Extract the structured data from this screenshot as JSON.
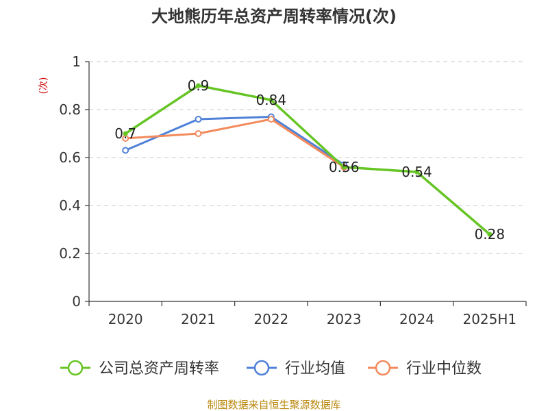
{
  "chart_data": {
    "type": "line",
    "title": "大地熊历年总资产周转率情况(次)",
    "ylabel": "(次)",
    "xlabel": "",
    "categories": [
      "2020",
      "2021",
      "2022",
      "2023",
      "2024",
      "2025H1"
    ],
    "ylim": [
      0,
      1
    ],
    "yticks": [
      0,
      0.2,
      0.4,
      0.6,
      0.8,
      1
    ],
    "ytick_labels": [
      "0",
      "0.2",
      "0.4",
      "0.6",
      "0.8",
      "1"
    ],
    "grid": true,
    "legend_position": "bottom",
    "series": [
      {
        "name": "公司总资产周转率",
        "color": "#66c424",
        "values": [
          0.7,
          0.9,
          0.84,
          0.56,
          0.54,
          0.28
        ],
        "labels": [
          "0.7",
          "0.9",
          "0.84",
          "0.56",
          "0.54",
          "0.28"
        ]
      },
      {
        "name": "行业均值",
        "color": "#4f81d8",
        "values": [
          0.63,
          0.76,
          0.77,
          0.57,
          null,
          null
        ]
      },
      {
        "name": "行业中位数",
        "color": "#f28a5c",
        "values": [
          0.68,
          0.7,
          0.76,
          0.56,
          null,
          null
        ]
      }
    ]
  },
  "source_note": "制图数据来自恒生聚源数据库"
}
